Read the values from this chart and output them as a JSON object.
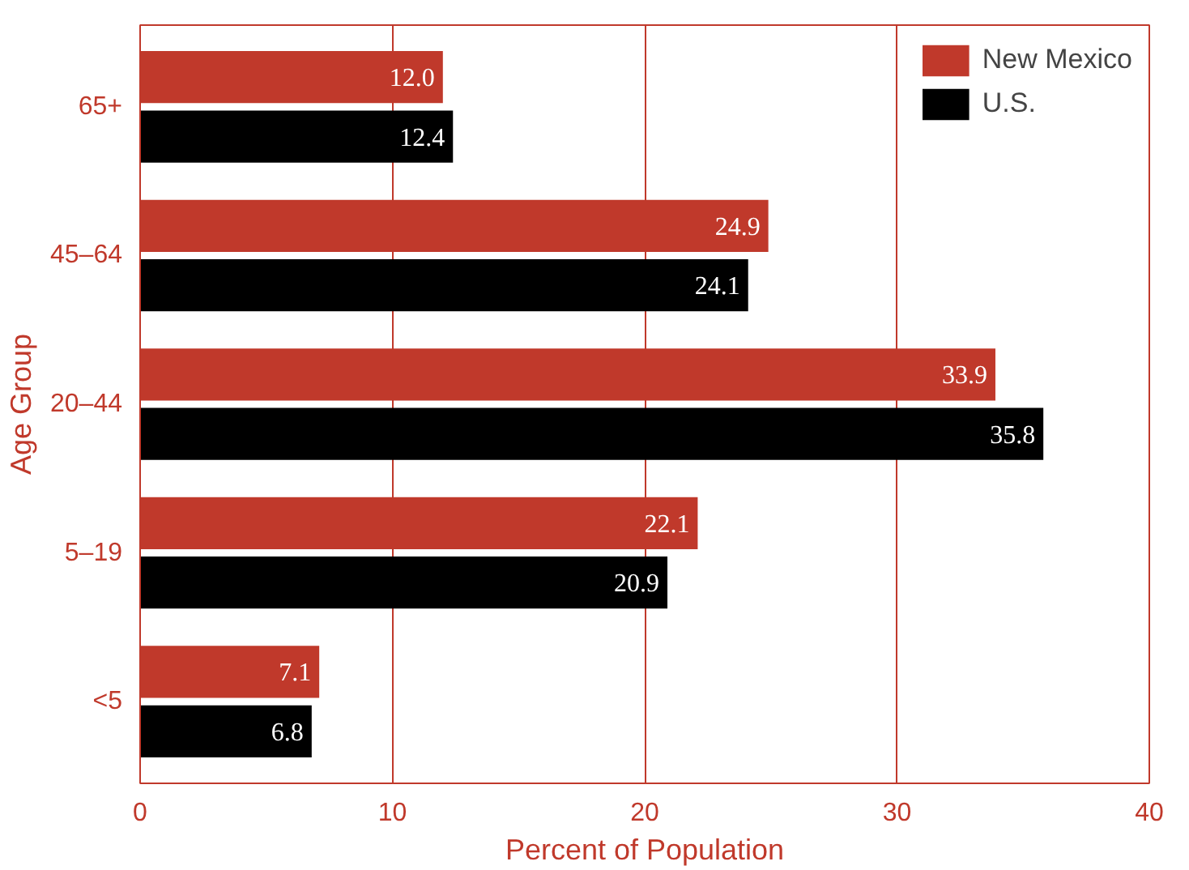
{
  "chart_data": {
    "type": "bar",
    "orientation": "horizontal",
    "xlabel": "Percent of Population",
    "ylabel": "Age Group",
    "categories": [
      "65+",
      "45–64",
      "20–44",
      "5–19",
      "<5"
    ],
    "series": [
      {
        "name": "New Mexico",
        "color": "#c0392b",
        "values": [
          12.0,
          24.9,
          33.9,
          22.1,
          7.1
        ],
        "value_labels": [
          "12.0",
          "24.9",
          "33.9",
          "22.1",
          "7.1"
        ]
      },
      {
        "name": "U.S.",
        "color": "#000000",
        "values": [
          12.4,
          24.1,
          35.8,
          20.9,
          6.8
        ],
        "value_labels": [
          "12.4",
          "24.1",
          "35.8",
          "20.9",
          "6.8"
        ]
      }
    ],
    "xlim": [
      0,
      40
    ],
    "xticks": [
      0,
      10,
      20,
      30,
      40
    ],
    "grid": "x",
    "legend": "top right"
  }
}
